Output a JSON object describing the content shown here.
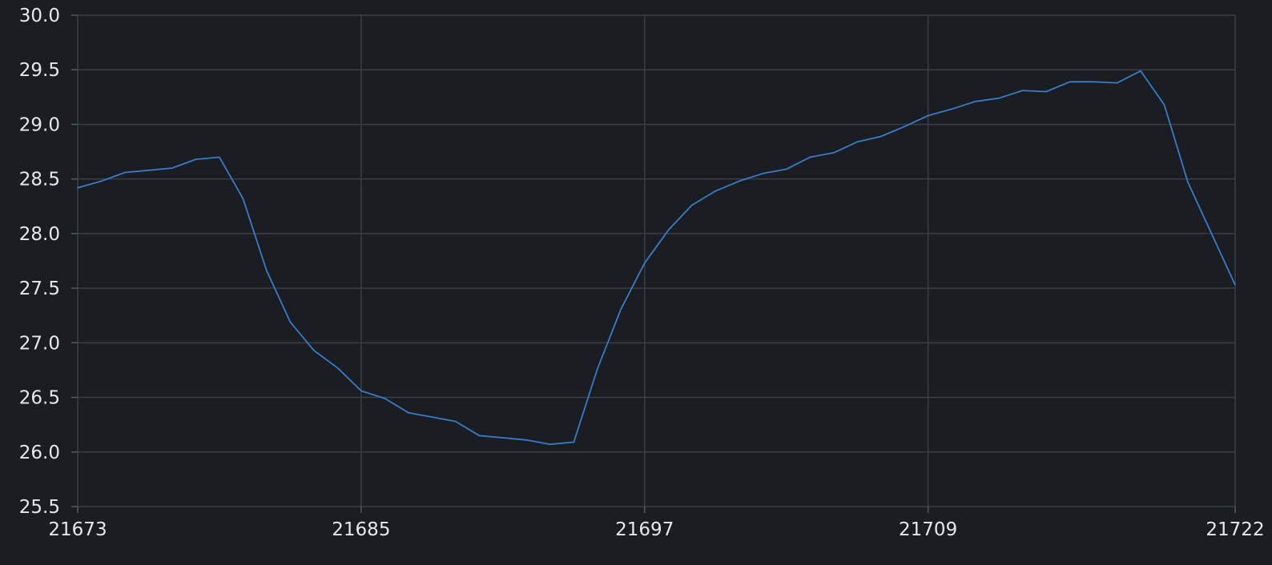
{
  "colors": {
    "background": "#1a1e23",
    "grid": "#3a3f46",
    "axis": "#555b63",
    "text": "#e6e8eb",
    "line": "#3a7bc8"
  },
  "chart_data": {
    "type": "line",
    "title": "",
    "xlabel": "",
    "ylabel": "",
    "grid": true,
    "xlim": [
      21673,
      21722
    ],
    "ylim": [
      25.5,
      30.0
    ],
    "x_ticks": [
      "21673",
      "21685",
      "21697",
      "21709",
      "21722"
    ],
    "y_ticks": [
      "25.5",
      "26.0",
      "26.5",
      "27.0",
      "27.5",
      "28.0",
      "28.5",
      "29.0",
      "29.5",
      "30.0"
    ],
    "series": [
      {
        "x": [
          21673,
          21674,
          21675,
          21676,
          21677,
          21678,
          21679,
          21680,
          21681,
          21682,
          21683,
          21684,
          21685,
          21686,
          21687,
          21688,
          21689,
          21690,
          21691,
          21692,
          21693,
          21694,
          21695,
          21696,
          21697,
          21698,
          21699,
          21700,
          21701,
          21702,
          21703,
          21704,
          21705,
          21706,
          21707,
          21708,
          21709,
          21710,
          21711,
          21712,
          21713,
          21714,
          21715,
          21716,
          21717,
          21718,
          21719,
          21720,
          21721,
          21722
        ],
        "values": [
          28.42,
          28.48,
          28.56,
          28.58,
          28.6,
          28.68,
          28.7,
          28.32,
          27.66,
          27.19,
          26.93,
          26.77,
          26.56,
          26.49,
          26.36,
          26.32,
          26.28,
          26.15,
          26.13,
          26.11,
          26.07,
          26.09,
          26.76,
          27.31,
          27.73,
          28.03,
          28.26,
          28.39,
          28.48,
          28.55,
          28.59,
          28.7,
          28.74,
          28.84,
          28.89,
          28.98,
          29.08,
          29.14,
          29.21,
          29.24,
          29.31,
          29.3,
          29.39,
          29.39,
          29.38,
          29.49,
          29.18,
          28.47,
          28.0,
          27.53
        ]
      }
    ]
  }
}
